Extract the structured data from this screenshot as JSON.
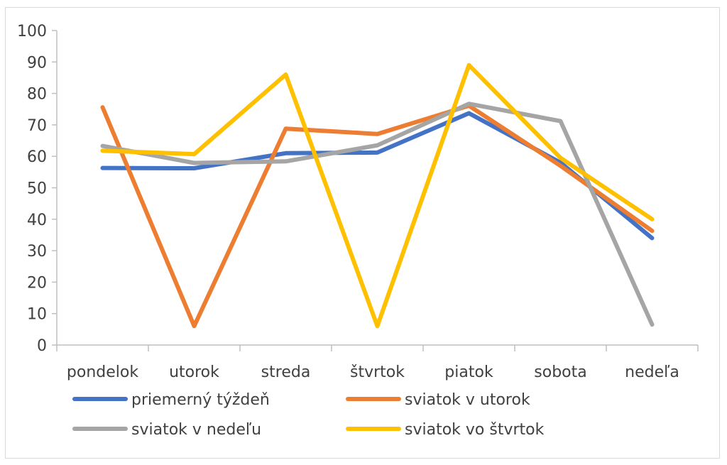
{
  "chart_data": {
    "type": "line",
    "title": "",
    "xlabel": "",
    "ylabel": "",
    "categories": [
      "pondelok",
      "utorok",
      "streda",
      "štvrtok",
      "piatok",
      "sobota",
      "nedeľa"
    ],
    "ylim": [
      0,
      100
    ],
    "ytick_step": 10,
    "grid": false,
    "legend_position": "bottom",
    "series": [
      {
        "name": "priemerný týždeň",
        "color": "#4472C4",
        "values": [
          56.3,
          56.2,
          61,
          61.2,
          73.7,
          58,
          34
        ]
      },
      {
        "name": "sviatok v utorok",
        "color": "#ED7D31",
        "values": [
          75.6,
          6,
          68.8,
          67.1,
          76.1,
          57,
          36.3
        ]
      },
      {
        "name": "sviatok v nedeľu",
        "color": "#A5A5A5",
        "values": [
          63.3,
          57.9,
          58.4,
          63.5,
          76.7,
          71.2,
          6.5
        ]
      },
      {
        "name": "sviatok vo štvrtok",
        "color": "#FFC000",
        "values": [
          61.8,
          60.7,
          86,
          6,
          89,
          59.5,
          40
        ]
      }
    ]
  }
}
